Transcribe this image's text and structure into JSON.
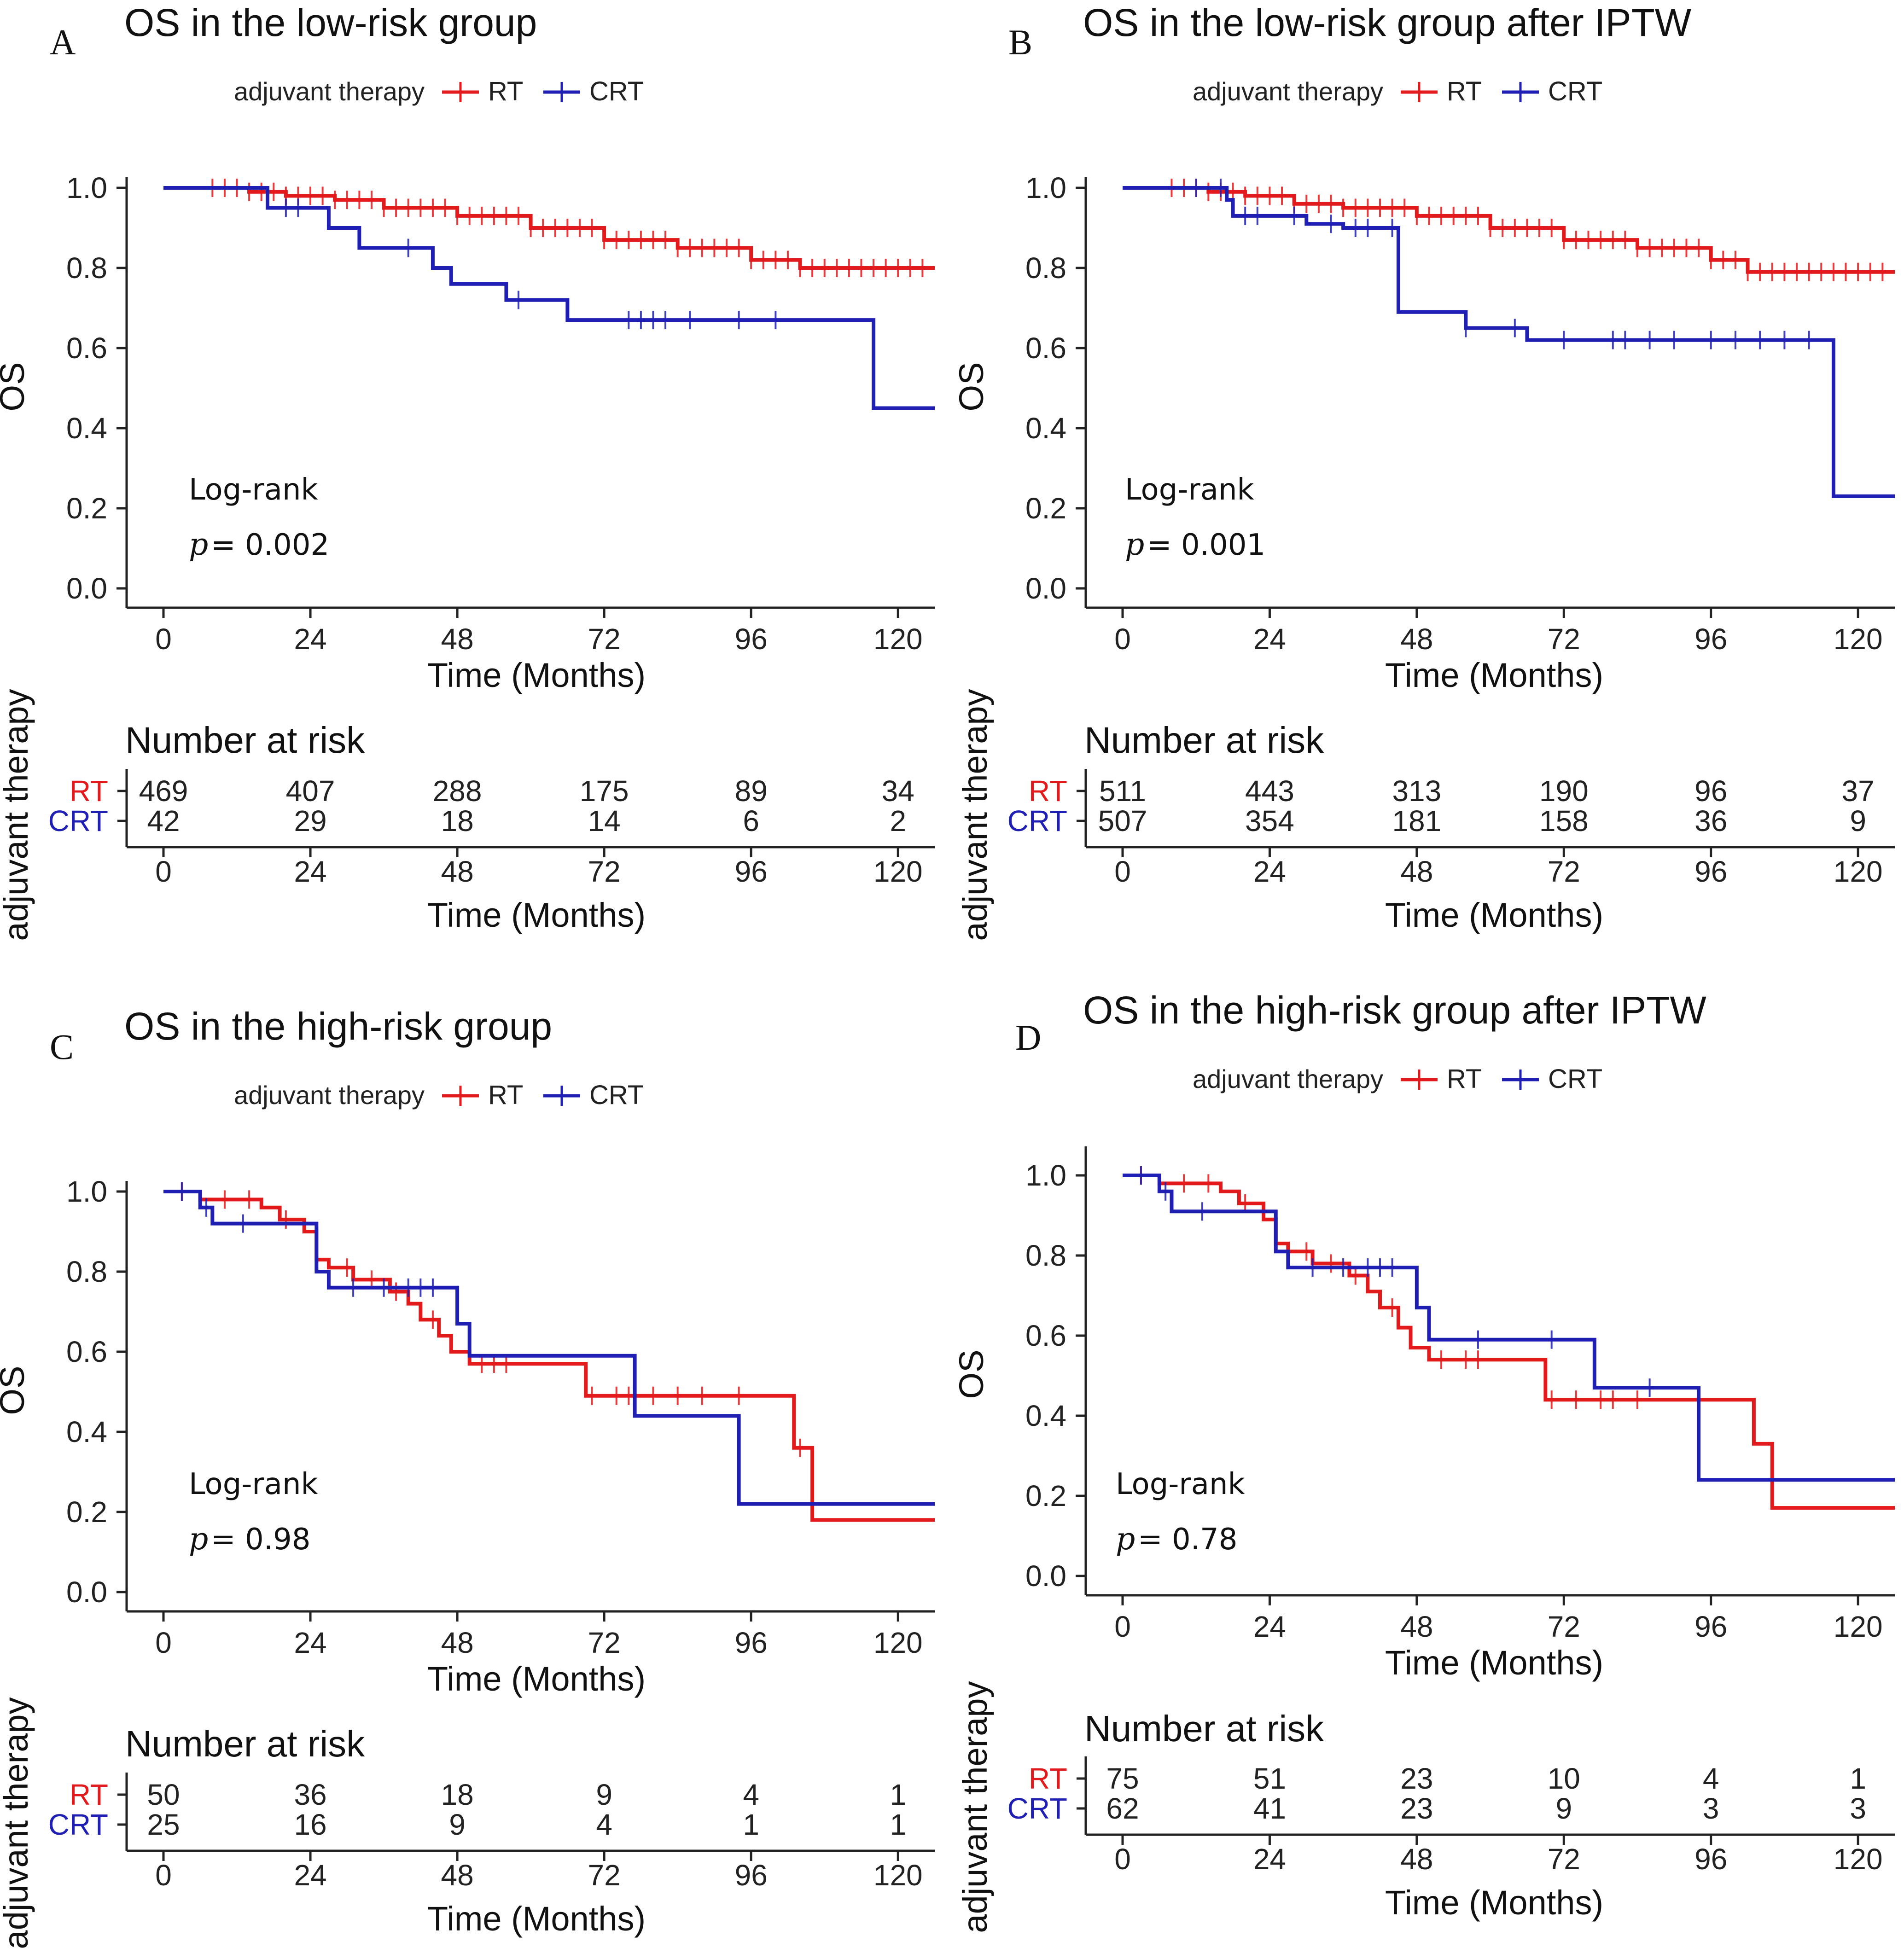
{
  "chart_data": [
    {
      "type": "line",
      "panel": "A",
      "title": "OS in the low-risk group",
      "legend_title": "adjuvant therapy",
      "xlabel": "Time (Months)",
      "ylabel": "OS",
      "xticks": [
        "0",
        "24",
        "48",
        "72",
        "96",
        "120"
      ],
      "yticks": [
        "0.0",
        "0.2",
        "0.4",
        "0.6",
        "0.8",
        "1.0"
      ],
      "xlim": [
        0,
        126
      ],
      "ylim": [
        0,
        1
      ],
      "annotation": {
        "test": "Log-rank",
        "p_symbol": "p",
        "p_text": "= 0.002"
      },
      "series": [
        {
          "name": "RT",
          "color": "#e31a1c",
          "steps": [
            [
              0,
              1
            ],
            [
              14,
              0.99
            ],
            [
              20,
              0.98
            ],
            [
              28,
              0.97
            ],
            [
              36,
              0.95
            ],
            [
              48,
              0.93
            ],
            [
              60,
              0.9
            ],
            [
              72,
              0.87
            ],
            [
              84,
              0.85
            ],
            [
              96,
              0.82
            ],
            [
              104,
              0.8
            ],
            [
              126,
              0.8
            ]
          ],
          "censor": [
            8,
            10,
            12,
            14,
            16,
            18,
            20,
            22,
            24,
            26,
            28,
            30,
            32,
            34,
            36,
            38,
            40,
            42,
            44,
            46,
            48,
            50,
            52,
            54,
            56,
            58,
            60,
            62,
            64,
            66,
            68,
            70,
            72,
            74,
            76,
            78,
            80,
            82,
            84,
            86,
            88,
            90,
            92,
            94,
            96,
            98,
            100,
            102,
            104,
            106,
            108,
            110,
            112,
            114,
            116,
            118,
            120,
            122,
            124
          ]
        },
        {
          "name": "CRT",
          "color": "#1f1fb4",
          "steps": [
            [
              0,
              1
            ],
            [
              17,
              0.95
            ],
            [
              27,
              0.9
            ],
            [
              32,
              0.85
            ],
            [
              44,
              0.8
            ],
            [
              47,
              0.76
            ],
            [
              56,
              0.72
            ],
            [
              66,
              0.67
            ],
            [
              116,
              0.67
            ],
            [
              116,
              0.45
            ],
            [
              126,
              0.45
            ]
          ],
          "censor": [
            20,
            22,
            40,
            58,
            76,
            78,
            80,
            82,
            86,
            94,
            100
          ]
        }
      ],
      "risk_table": {
        "title": "Number at risk",
        "xticks": [
          "0",
          "24",
          "48",
          "72",
          "96",
          "120"
        ],
        "xlabel": "Time (Months)",
        "ylabel": "adjuvant therapy",
        "rows": [
          {
            "label": "RT",
            "values": [
              "469",
              "407",
              "288",
              "175",
              "89",
              "34"
            ]
          },
          {
            "label": "CRT",
            "values": [
              "42",
              "29",
              "18",
              "14",
              "6",
              "2"
            ]
          }
        ]
      }
    },
    {
      "type": "line",
      "panel": "B",
      "title": "OS in the low-risk group after IPTW",
      "legend_title": "adjuvant therapy",
      "xlabel": "Time (Months)",
      "ylabel": "OS",
      "xticks": [
        "0",
        "24",
        "48",
        "72",
        "96",
        "120"
      ],
      "yticks": [
        "0.0",
        "0.2",
        "0.4",
        "0.6",
        "0.8",
        "1.0"
      ],
      "xlim": [
        0,
        126
      ],
      "ylim": [
        0,
        1
      ],
      "annotation": {
        "test": "Log-rank",
        "p_symbol": "p",
        "p_text": "= 0.001"
      },
      "series": [
        {
          "name": "RT",
          "color": "#e31a1c",
          "steps": [
            [
              0,
              1
            ],
            [
              14,
              0.99
            ],
            [
              20,
              0.98
            ],
            [
              28,
              0.96
            ],
            [
              36,
              0.95
            ],
            [
              48,
              0.93
            ],
            [
              60,
              0.9
            ],
            [
              72,
              0.87
            ],
            [
              84,
              0.85
            ],
            [
              96,
              0.82
            ],
            [
              102,
              0.79
            ],
            [
              126,
              0.79
            ]
          ],
          "censor": [
            8,
            10,
            12,
            14,
            16,
            18,
            20,
            22,
            24,
            26,
            28,
            30,
            32,
            34,
            36,
            38,
            40,
            42,
            44,
            46,
            48,
            50,
            52,
            54,
            56,
            58,
            60,
            62,
            64,
            66,
            68,
            70,
            72,
            74,
            76,
            78,
            80,
            82,
            84,
            86,
            88,
            90,
            92,
            94,
            96,
            98,
            100,
            102,
            104,
            106,
            108,
            110,
            112,
            114,
            116,
            118,
            120,
            122,
            124
          ]
        },
        {
          "name": "CRT",
          "color": "#1f1fb4",
          "steps": [
            [
              0,
              1
            ],
            [
              17,
              0.97
            ],
            [
              18,
              0.93
            ],
            [
              30,
              0.91
            ],
            [
              36,
              0.9
            ],
            [
              45,
              0.88
            ],
            [
              45,
              0.69
            ],
            [
              56,
              0.65
            ],
            [
              66,
              0.62
            ],
            [
              116,
              0.62
            ],
            [
              116,
              0.23
            ],
            [
              126,
              0.23
            ]
          ],
          "censor": [
            12,
            16,
            20,
            22,
            28,
            34,
            38,
            40,
            44,
            56,
            64,
            72,
            80,
            82,
            86,
            90,
            96,
            100,
            104,
            108,
            112
          ]
        }
      ],
      "risk_table": {
        "title": "Number at risk",
        "xticks": [
          "0",
          "24",
          "48",
          "72",
          "96",
          "120"
        ],
        "xlabel": "Time (Months)",
        "ylabel": "adjuvant therapy",
        "rows": [
          {
            "label": "RT",
            "values": [
              "511",
              "443",
              "313",
              "190",
              "96",
              "37"
            ]
          },
          {
            "label": "CRT",
            "values": [
              "507",
              "354",
              "181",
              "158",
              "36",
              "9"
            ]
          }
        ]
      }
    },
    {
      "type": "line",
      "panel": "C",
      "title": "OS in the high-risk group",
      "legend_title": "adjuvant therapy",
      "xlabel": "Time (Months)",
      "ylabel": "OS",
      "xticks": [
        "0",
        "24",
        "48",
        "72",
        "96",
        "120"
      ],
      "yticks": [
        "0.0",
        "0.2",
        "0.4",
        "0.6",
        "0.8",
        "1.0"
      ],
      "xlim": [
        0,
        126
      ],
      "ylim": [
        0,
        1
      ],
      "annotation": {
        "test": "Log-rank",
        "p_symbol": "p",
        "p_text": "= 0.98"
      },
      "series": [
        {
          "name": "RT",
          "color": "#e31a1c",
          "steps": [
            [
              0,
              1
            ],
            [
              6,
              0.98
            ],
            [
              16,
              0.96
            ],
            [
              19,
              0.93
            ],
            [
              23,
              0.9
            ],
            [
              25,
              0.83
            ],
            [
              27,
              0.81
            ],
            [
              31,
              0.78
            ],
            [
              37,
              0.75
            ],
            [
              40,
              0.72
            ],
            [
              42,
              0.68
            ],
            [
              45,
              0.64
            ],
            [
              47,
              0.6
            ],
            [
              50,
              0.57
            ],
            [
              69,
              0.49
            ],
            [
              103,
              0.49
            ],
            [
              103,
              0.36
            ],
            [
              106,
              0.18
            ],
            [
              126,
              0.18
            ]
          ],
          "censor": [
            3,
            10,
            14,
            20,
            30,
            34,
            38,
            44,
            52,
            54,
            56,
            70,
            74,
            76,
            80,
            84,
            88,
            94,
            104
          ]
        },
        {
          "name": "CRT",
          "color": "#1f1fb4",
          "steps": [
            [
              0,
              1
            ],
            [
              6,
              0.96
            ],
            [
              8,
              0.92
            ],
            [
              23,
              0.92
            ],
            [
              25,
              0.8
            ],
            [
              27,
              0.76
            ],
            [
              48,
              0.76
            ],
            [
              48,
              0.67
            ],
            [
              50,
              0.59
            ],
            [
              77,
              0.59
            ],
            [
              77,
              0.44
            ],
            [
              94,
              0.44
            ],
            [
              94,
              0.22
            ],
            [
              126,
              0.22
            ]
          ],
          "censor": [
            3,
            7,
            13,
            31,
            36,
            40,
            42,
            44
          ]
        }
      ],
      "risk_table": {
        "title": "Number at risk",
        "xticks": [
          "0",
          "24",
          "48",
          "72",
          "96",
          "120"
        ],
        "xlabel": "Time (Months)",
        "ylabel": "adjuvant therapy",
        "rows": [
          {
            "label": "RT",
            "values": [
              "50",
              "36",
              "18",
              "9",
              "4",
              "1"
            ]
          },
          {
            "label": "CRT",
            "values": [
              "25",
              "16",
              "9",
              "4",
              "1",
              "1"
            ]
          }
        ]
      }
    },
    {
      "type": "line",
      "panel": "D",
      "title": "OS in the high-risk group after IPTW",
      "legend_title": "adjuvant therapy",
      "xlabel": "Time (Months)",
      "ylabel": "OS",
      "xticks": [
        "0",
        "24",
        "48",
        "72",
        "96",
        "120"
      ],
      "yticks": [
        "0.0",
        "0.2",
        "0.4",
        "0.6",
        "0.8",
        "1.0"
      ],
      "xlim": [
        0,
        126
      ],
      "ylim": [
        0,
        1
      ],
      "annotation": {
        "test": "Log-rank",
        "p_symbol": "p",
        "p_text": "= 0.78"
      },
      "series": [
        {
          "name": "RT",
          "color": "#e31a1c",
          "steps": [
            [
              0,
              1
            ],
            [
              6,
              0.98
            ],
            [
              16,
              0.96
            ],
            [
              19,
              0.93
            ],
            [
              23,
              0.89
            ],
            [
              25,
              0.83
            ],
            [
              27,
              0.81
            ],
            [
              31,
              0.78
            ],
            [
              37,
              0.75
            ],
            [
              40,
              0.71
            ],
            [
              42,
              0.67
            ],
            [
              45,
              0.62
            ],
            [
              47,
              0.57
            ],
            [
              50,
              0.54
            ],
            [
              69,
              0.44
            ],
            [
              103,
              0.44
            ],
            [
              103,
              0.33
            ],
            [
              106,
              0.17
            ],
            [
              126,
              0.17
            ]
          ],
          "censor": [
            3,
            10,
            14,
            20,
            30,
            34,
            38,
            44,
            52,
            56,
            58,
            70,
            74,
            78,
            80,
            84
          ]
        },
        {
          "name": "CRT",
          "color": "#1f1fb4",
          "steps": [
            [
              0,
              1
            ],
            [
              6,
              0.96
            ],
            [
              8,
              0.91
            ],
            [
              23,
              0.91
            ],
            [
              25,
              0.81
            ],
            [
              27,
              0.77
            ],
            [
              48,
              0.77
            ],
            [
              48,
              0.67
            ],
            [
              50,
              0.59
            ],
            [
              77,
              0.59
            ],
            [
              77,
              0.47
            ],
            [
              94,
              0.47
            ],
            [
              94,
              0.24
            ],
            [
              126,
              0.24
            ]
          ],
          "censor": [
            3,
            7,
            13,
            31,
            36,
            40,
            42,
            44,
            58,
            70,
            86
          ]
        }
      ],
      "risk_table": {
        "title": "Number at risk",
        "xticks": [
          "0",
          "24",
          "48",
          "72",
          "96",
          "120"
        ],
        "xlabel": "Time (Months)",
        "ylabel": "adjuvant therapy",
        "rows": [
          {
            "label": "RT",
            "values": [
              "75",
              "51",
              "23",
              "10",
              "4",
              "1"
            ]
          },
          {
            "label": "CRT",
            "values": [
              "62",
              "41",
              "23",
              "9",
              "3",
              "3"
            ]
          }
        ]
      }
    }
  ]
}
